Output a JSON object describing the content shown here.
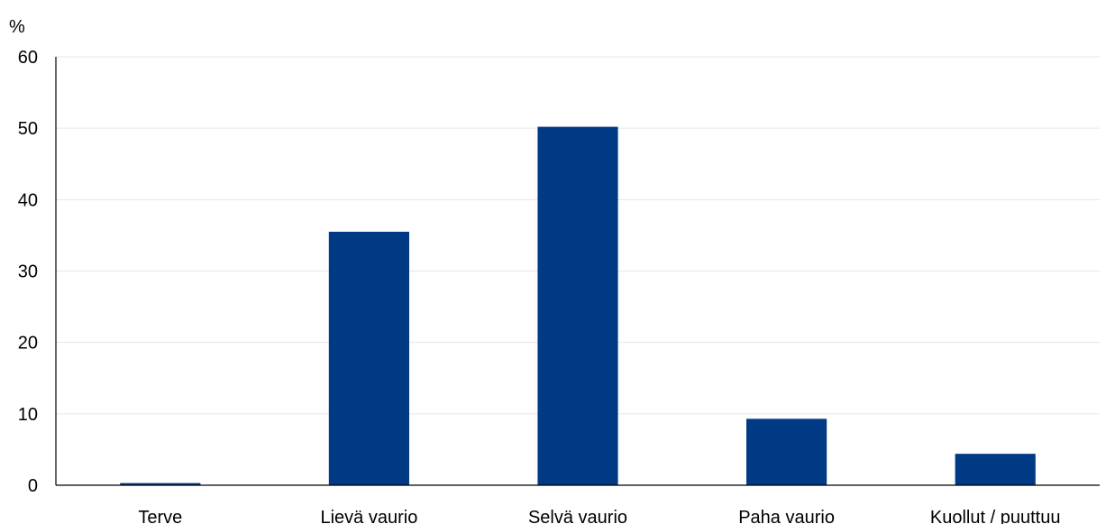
{
  "chart_data": {
    "type": "bar",
    "title": "",
    "xlabel": "",
    "ylabel": "%",
    "ylim": [
      0,
      60
    ],
    "yticks": [
      0,
      10,
      20,
      30,
      40,
      50,
      60
    ],
    "grid": true,
    "legend": "none",
    "categories": [
      "Terve",
      "Lievä vaurio",
      "Selvä vaurio",
      "Paha vaurio",
      "Kuollut / puuttuu"
    ],
    "values": [
      0.3,
      35.5,
      50.2,
      9.3,
      4.4
    ]
  },
  "colors": {
    "bar": "#003A84",
    "grid": "#E6E6E6",
    "axis": "#000000"
  }
}
